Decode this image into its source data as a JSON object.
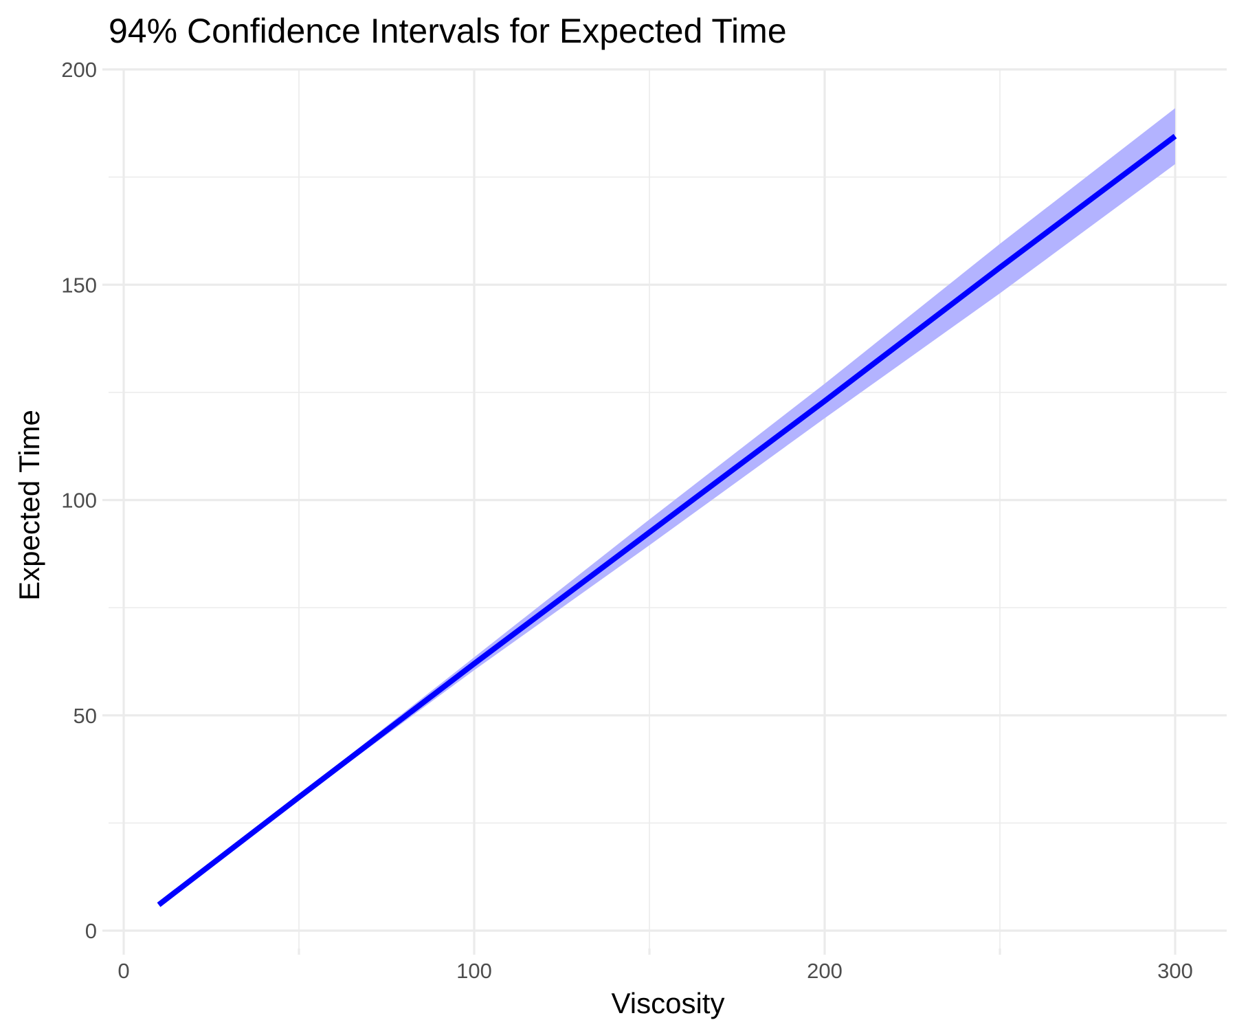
{
  "chart_data": {
    "type": "line",
    "title": "94% Confidence Intervals for Expected Time",
    "xlabel": "Viscosity",
    "ylabel": "Expected Time",
    "xlim": [
      -5,
      315
    ],
    "ylim": [
      -1,
      200
    ],
    "x_ticks": [
      0,
      100,
      200,
      300
    ],
    "x_tick_labels": [
      "0",
      "100",
      "200",
      "300"
    ],
    "x_minor_ticks": [
      50,
      150,
      250
    ],
    "y_ticks": [
      0,
      50,
      100,
      150,
      200
    ],
    "y_tick_labels": [
      "0",
      "50",
      "100",
      "150",
      "200"
    ],
    "y_minor_ticks": [
      25,
      75,
      125,
      175
    ],
    "grid": true,
    "line_color": "#0000ff",
    "band_color": "#b3b3ff",
    "series": [
      {
        "x": [
          10,
          50,
          100,
          150,
          200,
          250,
          300
        ],
        "y": [
          6,
          31,
          62,
          92.5,
          123,
          154,
          184.5
        ],
        "lower": [
          6,
          30.5,
          60.5,
          89.5,
          119,
          148,
          178
        ],
        "upper": [
          6,
          31.5,
          63.5,
          95.5,
          127,
          159.5,
          191
        ]
      }
    ]
  }
}
